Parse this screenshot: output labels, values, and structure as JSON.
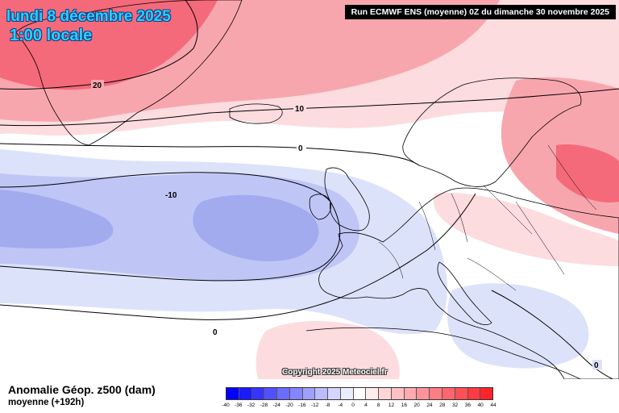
{
  "header": {
    "date_title": "lundi 8 décembre 2025",
    "time_title": "1:00 locale",
    "run_info": "Run ECMWF ENS (moyenne) 0Z du dimanche 30 novembre 2025"
  },
  "map": {
    "copyright": "Copyright 2025 Meteociel.fr",
    "contour_labels": [
      "20",
      "10",
      "0",
      "-10",
      "0",
      "0"
    ],
    "colors": {
      "strong_positive": "#f46a7a",
      "positive": "#f8a6ae",
      "weak_positive": "#fcdcdf",
      "neutral": "#ffffff",
      "weak_negative": "#dde2fb",
      "negative": "#bfc6f6",
      "strong_negative": "#a3abef"
    }
  },
  "footer": {
    "title": "Anomalie Géop. z500 (dam)",
    "subtitle": "moyenne  (+192h)"
  },
  "legend": {
    "ticks": [
      "-40",
      "-36",
      "-32",
      "-28",
      "-24",
      "-20",
      "-16",
      "-12",
      "-8",
      "-4",
      "0",
      "4",
      "8",
      "12",
      "16",
      "20",
      "24",
      "28",
      "32",
      "36",
      "40",
      "44"
    ],
    "colors": [
      "#0000ff",
      "#1a1aff",
      "#3535ff",
      "#5050ff",
      "#6b6bff",
      "#8585ff",
      "#a0a0ff",
      "#bbbbff",
      "#d5d5ff",
      "#ececff",
      "#ffffff",
      "#ffecec",
      "#ffd5d8",
      "#ffbfc4",
      "#ffaab0",
      "#ff9399",
      "#ff7d84",
      "#ff666e",
      "#ff5058",
      "#ff3a42",
      "#ff242c"
    ]
  }
}
